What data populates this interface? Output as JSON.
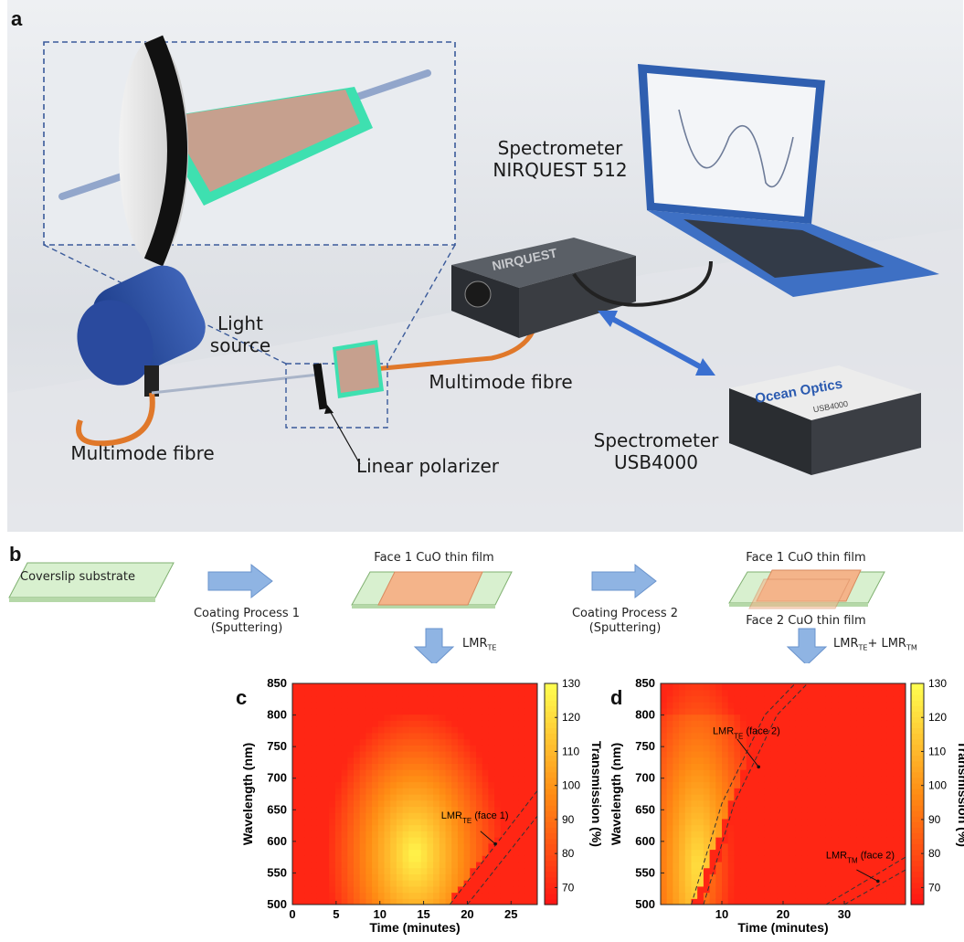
{
  "panel_a": {
    "letter": "a",
    "labels": {
      "spectrometer_nirquest": [
        "Spectrometer",
        "NIRQUEST 512"
      ],
      "light_source": [
        "Light",
        "source"
      ],
      "multimode_fibre_right": "Multimode fibre",
      "multimode_fibre_left": "Multimode fibre",
      "linear_polarizer": "Linear polarizer",
      "spectrometer_usb": [
        "Spectrometer",
        "USB4000"
      ],
      "device_brand_nirquest": "NIRQUEST",
      "device_brand_ocean": "Ocean Optics",
      "device_model_usb": "USB4000"
    }
  },
  "panel_b": {
    "letter": "b",
    "substrate": "Coverslip substrate",
    "process1": [
      "Coating Process 1",
      "(Sputtering)"
    ],
    "process2": [
      "Coating Process 2",
      "(Sputtering)"
    ],
    "face1_title": "Face 1  CuO thin film",
    "face1_title_2": "Face 1  CuO thin film",
    "face2_title": "Face 2 CuO thin film",
    "arrow1_label": "LMR",
    "arrow1_sub": "TE",
    "arrow2_label_a": "LMR",
    "arrow2_sub_a": "TE",
    "arrow2_plus": "+ LMR",
    "arrow2_sub_b": "TM"
  },
  "chart_data": [
    {
      "type": "heatmap",
      "panel": "c",
      "xlabel": "Time (minutes)",
      "ylabel": "Wavelength (nm)",
      "colorbar_label": "Transmission (%)",
      "xlim": [
        0,
        28
      ],
      "ylim": [
        500,
        850
      ],
      "xticks": [
        0,
        5,
        10,
        15,
        20,
        25
      ],
      "yticks": [
        500,
        550,
        600,
        650,
        700,
        750,
        800,
        850
      ],
      "colorbar_ticks": [
        70,
        80,
        90,
        100,
        110,
        120,
        130
      ],
      "colorbar_range": [
        65,
        130
      ],
      "annotations": [
        {
          "text": "LMR",
          "sub": "TE",
          "suffix": " (face 1)"
        }
      ],
      "dashed_lines": [
        {
          "points": [
            [
              18,
              500
            ],
            [
              28,
              680
            ]
          ]
        },
        {
          "points": [
            [
              20,
              500
            ],
            [
              28,
              640
            ]
          ]
        }
      ]
    },
    {
      "type": "heatmap",
      "panel": "d",
      "xlabel": "Time (minutes)",
      "ylabel": "Wavelength (nm)",
      "colorbar_label": "Transmission (%)",
      "xlim": [
        0,
        40
      ],
      "ylim": [
        500,
        850
      ],
      "xticks": [
        10,
        20,
        30
      ],
      "yticks": [
        500,
        550,
        600,
        650,
        700,
        750,
        800,
        850
      ],
      "colorbar_ticks": [
        70,
        80,
        90,
        100,
        110,
        120,
        130
      ],
      "colorbar_range": [
        65,
        130
      ],
      "annotations": [
        {
          "text": "LMR",
          "sub": "TE",
          "suffix": " (face 2)"
        },
        {
          "text": "LMR",
          "sub": "TM",
          "suffix": " (face 2)"
        }
      ],
      "dashed_lines": [
        {
          "points": [
            [
              5,
              500
            ],
            [
              10,
              660
            ],
            [
              17,
              800
            ],
            [
              22,
              850
            ]
          ]
        },
        {
          "points": [
            [
              7,
              500
            ],
            [
              12,
              660
            ],
            [
              19,
              800
            ],
            [
              24,
              850
            ]
          ]
        },
        {
          "points": [
            [
              27,
              500
            ],
            [
              40,
              575
            ]
          ]
        },
        {
          "points": [
            [
              30,
              500
            ],
            [
              40,
              555
            ]
          ]
        }
      ]
    }
  ],
  "colors": {
    "heat_low": "#ff2a1a",
    "heat_mid": "#ff8c1a",
    "heat_high": "#ffff33",
    "fibre": "#e0782a",
    "laptop": "#2f5fb0",
    "substrate": "#d8f0cf",
    "film": "#f4b48a",
    "arrow": "#8fb4e3"
  }
}
